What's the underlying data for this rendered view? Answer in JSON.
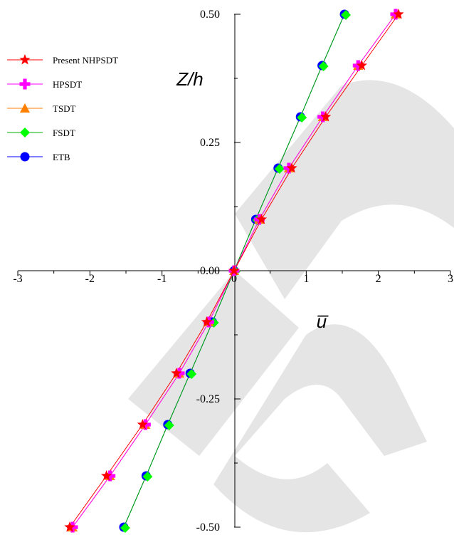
{
  "chart_data": {
    "type": "line",
    "title": "",
    "xlabel": "u̅",
    "ylabel": "Z/h",
    "xlim": [
      -3,
      3
    ],
    "ylim": [
      -0.5,
      0.5
    ],
    "x_ticks": [
      "-3",
      "-2",
      "-1",
      "0",
      "1",
      "2",
      "3"
    ],
    "y_ticks": [
      "-0.50",
      "-0.25",
      "0.00",
      "0.25",
      "0.50"
    ],
    "grid": false,
    "legend_position": "top-left",
    "series": [
      {
        "name": "Present NHPSDT",
        "marker": "star",
        "color": "#ff0000",
        "line_color": "#ff0000",
        "x": [
          -2.28,
          -1.77,
          -1.27,
          -0.8,
          -0.38,
          0,
          0.38,
          0.8,
          1.27,
          1.77,
          2.28
        ],
        "y": [
          -0.5,
          -0.4,
          -0.3,
          -0.2,
          -0.1,
          0,
          0.1,
          0.2,
          0.3,
          0.4,
          0.5
        ]
      },
      {
        "name": "HPSDT",
        "marker": "plus",
        "color": "#ff00ff",
        "line_color": "#ff00ff",
        "x": [
          -2.24,
          -1.72,
          -1.23,
          -0.76,
          -0.35,
          0,
          0.35,
          0.76,
          1.23,
          1.72,
          2.24
        ],
        "y": [
          -0.5,
          -0.4,
          -0.3,
          -0.2,
          -0.1,
          0,
          0.1,
          0.2,
          0.3,
          0.4,
          0.5
        ]
      },
      {
        "name": "TSDT",
        "marker": "triangle",
        "color": "#ff7f00",
        "line_color": "#ff7f00",
        "x": [
          -2.24,
          -1.72,
          -1.23,
          -0.76,
          -0.35,
          0,
          0.35,
          0.76,
          1.23,
          1.72,
          2.24
        ],
        "y": [
          -0.5,
          -0.4,
          -0.3,
          -0.2,
          -0.1,
          0,
          0.1,
          0.2,
          0.3,
          0.4,
          0.5
        ]
      },
      {
        "name": "FSDT",
        "marker": "diamond",
        "color": "#00ff00",
        "line_color": "#00b000",
        "x": [
          -1.53,
          -1.22,
          -0.92,
          -0.61,
          -0.3,
          0,
          0.3,
          0.61,
          0.92,
          1.22,
          1.53
        ],
        "y": [
          -0.5,
          -0.4,
          -0.3,
          -0.2,
          -0.1,
          0,
          0.1,
          0.2,
          0.3,
          0.4,
          0.5
        ]
      },
      {
        "name": "ETB",
        "marker": "circle",
        "color": "#0000ff",
        "line_color": "#0000ff",
        "x": [
          -1.53,
          -1.22,
          -0.92,
          -0.61,
          -0.3,
          0,
          0.3,
          0.61,
          0.92,
          1.22,
          1.53
        ],
        "y": [
          -0.5,
          -0.4,
          -0.3,
          -0.2,
          -0.1,
          0,
          0.1,
          0.2,
          0.3,
          0.4,
          0.5
        ]
      }
    ]
  }
}
